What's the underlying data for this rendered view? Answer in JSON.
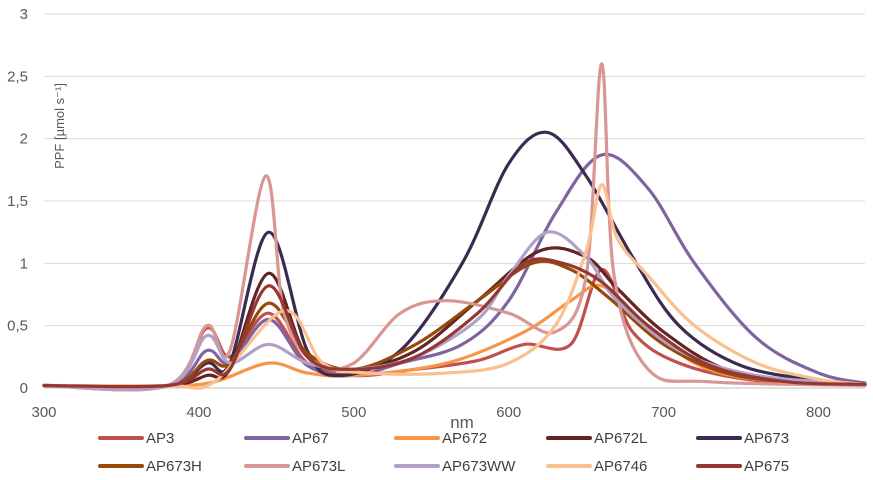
{
  "chart_data": {
    "type": "line",
    "title": "",
    "xlabel": "nm",
    "ylabel": "PPF [µmol s⁻¹]",
    "xlim": [
      300,
      830
    ],
    "ylim": [
      0,
      3
    ],
    "x_ticks": [
      "300",
      "400",
      "500",
      "600",
      "700",
      "800"
    ],
    "y_ticks": [
      "0",
      "0,5",
      "1",
      "1,5",
      "2",
      "2,5",
      "3"
    ],
    "grid": "horizontal",
    "legend_position": "bottom",
    "series": [
      {
        "name": "AP3",
        "color": "#c0504d",
        "points": [
          [
            300,
            0.02
          ],
          [
            380,
            0.02
          ],
          [
            405,
            0.48
          ],
          [
            420,
            0.25
          ],
          [
            445,
            0.6
          ],
          [
            470,
            0.2
          ],
          [
            500,
            0.1
          ],
          [
            540,
            0.15
          ],
          [
            580,
            0.22
          ],
          [
            610,
            0.35
          ],
          [
            640,
            0.35
          ],
          [
            660,
            0.95
          ],
          [
            680,
            0.45
          ],
          [
            710,
            0.2
          ],
          [
            760,
            0.06
          ],
          [
            830,
            0.03
          ]
        ]
      },
      {
        "name": "AP67",
        "color": "#8064a2",
        "points": [
          [
            300,
            0.02
          ],
          [
            380,
            0.02
          ],
          [
            405,
            0.3
          ],
          [
            420,
            0.2
          ],
          [
            445,
            0.55
          ],
          [
            470,
            0.18
          ],
          [
            500,
            0.1
          ],
          [
            530,
            0.2
          ],
          [
            570,
            0.35
          ],
          [
            600,
            0.7
          ],
          [
            630,
            1.4
          ],
          [
            660,
            1.87
          ],
          [
            690,
            1.6
          ],
          [
            720,
            1.0
          ],
          [
            760,
            0.4
          ],
          [
            800,
            0.12
          ],
          [
            830,
            0.04
          ]
        ]
      },
      {
        "name": "AP672",
        "color": "#f79646",
        "points": [
          [
            300,
            0.02
          ],
          [
            380,
            0.02
          ],
          [
            410,
            0.05
          ],
          [
            445,
            0.2
          ],
          [
            470,
            0.12
          ],
          [
            500,
            0.1
          ],
          [
            560,
            0.2
          ],
          [
            610,
            0.45
          ],
          [
            640,
            0.7
          ],
          [
            660,
            0.82
          ],
          [
            685,
            0.55
          ],
          [
            720,
            0.2
          ],
          [
            760,
            0.07
          ],
          [
            830,
            0.03
          ]
        ]
      },
      {
        "name": "AP672L",
        "color": "#632523",
        "points": [
          [
            300,
            0.02
          ],
          [
            380,
            0.02
          ],
          [
            405,
            0.1
          ],
          [
            420,
            0.15
          ],
          [
            445,
            0.92
          ],
          [
            470,
            0.25
          ],
          [
            500,
            0.15
          ],
          [
            540,
            0.3
          ],
          [
            580,
            0.7
          ],
          [
            620,
            1.1
          ],
          [
            650,
            1.05
          ],
          [
            670,
            0.8
          ],
          [
            700,
            0.45
          ],
          [
            740,
            0.15
          ],
          [
            790,
            0.05
          ],
          [
            830,
            0.03
          ]
        ]
      },
      {
        "name": "AP673",
        "color": "#3c2b50",
        "points": [
          [
            300,
            0.02
          ],
          [
            380,
            0.02
          ],
          [
            405,
            0.2
          ],
          [
            420,
            0.2
          ],
          [
            445,
            1.25
          ],
          [
            470,
            0.3
          ],
          [
            490,
            0.1
          ],
          [
            530,
            0.3
          ],
          [
            570,
            1.0
          ],
          [
            600,
            1.8
          ],
          [
            625,
            2.05
          ],
          [
            650,
            1.7
          ],
          [
            680,
            1.05
          ],
          [
            710,
            0.5
          ],
          [
            750,
            0.18
          ],
          [
            800,
            0.06
          ],
          [
            830,
            0.03
          ]
        ]
      },
      {
        "name": "AP673H",
        "color": "#984807",
        "points": [
          [
            300,
            0.02
          ],
          [
            380,
            0.02
          ],
          [
            405,
            0.22
          ],
          [
            420,
            0.2
          ],
          [
            445,
            0.68
          ],
          [
            470,
            0.28
          ],
          [
            500,
            0.15
          ],
          [
            540,
            0.35
          ],
          [
            580,
            0.7
          ],
          [
            615,
            1.0
          ],
          [
            640,
            0.95
          ],
          [
            665,
            0.72
          ],
          [
            700,
            0.35
          ],
          [
            740,
            0.12
          ],
          [
            790,
            0.04
          ],
          [
            830,
            0.03
          ]
        ]
      },
      {
        "name": "AP673L",
        "color": "#d99694",
        "points": [
          [
            300,
            0.02
          ],
          [
            380,
            0.02
          ],
          [
            405,
            0.5
          ],
          [
            420,
            0.3
          ],
          [
            443,
            1.7
          ],
          [
            455,
            0.6
          ],
          [
            475,
            0.2
          ],
          [
            500,
            0.2
          ],
          [
            530,
            0.6
          ],
          [
            560,
            0.7
          ],
          [
            600,
            0.6
          ],
          [
            630,
            0.45
          ],
          [
            650,
            0.9
          ],
          [
            660,
            2.6
          ],
          [
            668,
            0.9
          ],
          [
            690,
            0.15
          ],
          [
            730,
            0.05
          ],
          [
            830,
            0.02
          ]
        ]
      },
      {
        "name": "AP673WW",
        "color": "#b2a1c7",
        "points": [
          [
            300,
            0.02
          ],
          [
            380,
            0.02
          ],
          [
            405,
            0.42
          ],
          [
            420,
            0.2
          ],
          [
            445,
            0.35
          ],
          [
            470,
            0.2
          ],
          [
            500,
            0.15
          ],
          [
            540,
            0.25
          ],
          [
            580,
            0.55
          ],
          [
            600,
            0.9
          ],
          [
            625,
            1.25
          ],
          [
            650,
            1.05
          ],
          [
            670,
            0.7
          ],
          [
            710,
            0.3
          ],
          [
            760,
            0.1
          ],
          [
            830,
            0.03
          ]
        ]
      },
      {
        "name": "AP6746",
        "color": "#fac090",
        "points": [
          [
            300,
            0.02
          ],
          [
            380,
            0.02
          ],
          [
            410,
            0.05
          ],
          [
            455,
            0.62
          ],
          [
            480,
            0.2
          ],
          [
            510,
            0.12
          ],
          [
            560,
            0.12
          ],
          [
            600,
            0.2
          ],
          [
            630,
            0.5
          ],
          [
            650,
            1.1
          ],
          [
            660,
            1.63
          ],
          [
            670,
            1.2
          ],
          [
            690,
            0.9
          ],
          [
            720,
            0.5
          ],
          [
            760,
            0.2
          ],
          [
            800,
            0.07
          ],
          [
            830,
            0.03
          ]
        ]
      },
      {
        "name": "AP675",
        "color": "#953735",
        "points": [
          [
            300,
            0.02
          ],
          [
            380,
            0.02
          ],
          [
            405,
            0.15
          ],
          [
            420,
            0.15
          ],
          [
            445,
            0.82
          ],
          [
            470,
            0.25
          ],
          [
            500,
            0.15
          ],
          [
            540,
            0.25
          ],
          [
            580,
            0.6
          ],
          [
            610,
            1.0
          ],
          [
            635,
            1.0
          ],
          [
            660,
            0.85
          ],
          [
            690,
            0.5
          ],
          [
            730,
            0.18
          ],
          [
            780,
            0.05
          ],
          [
            830,
            0.03
          ]
        ]
      }
    ]
  }
}
